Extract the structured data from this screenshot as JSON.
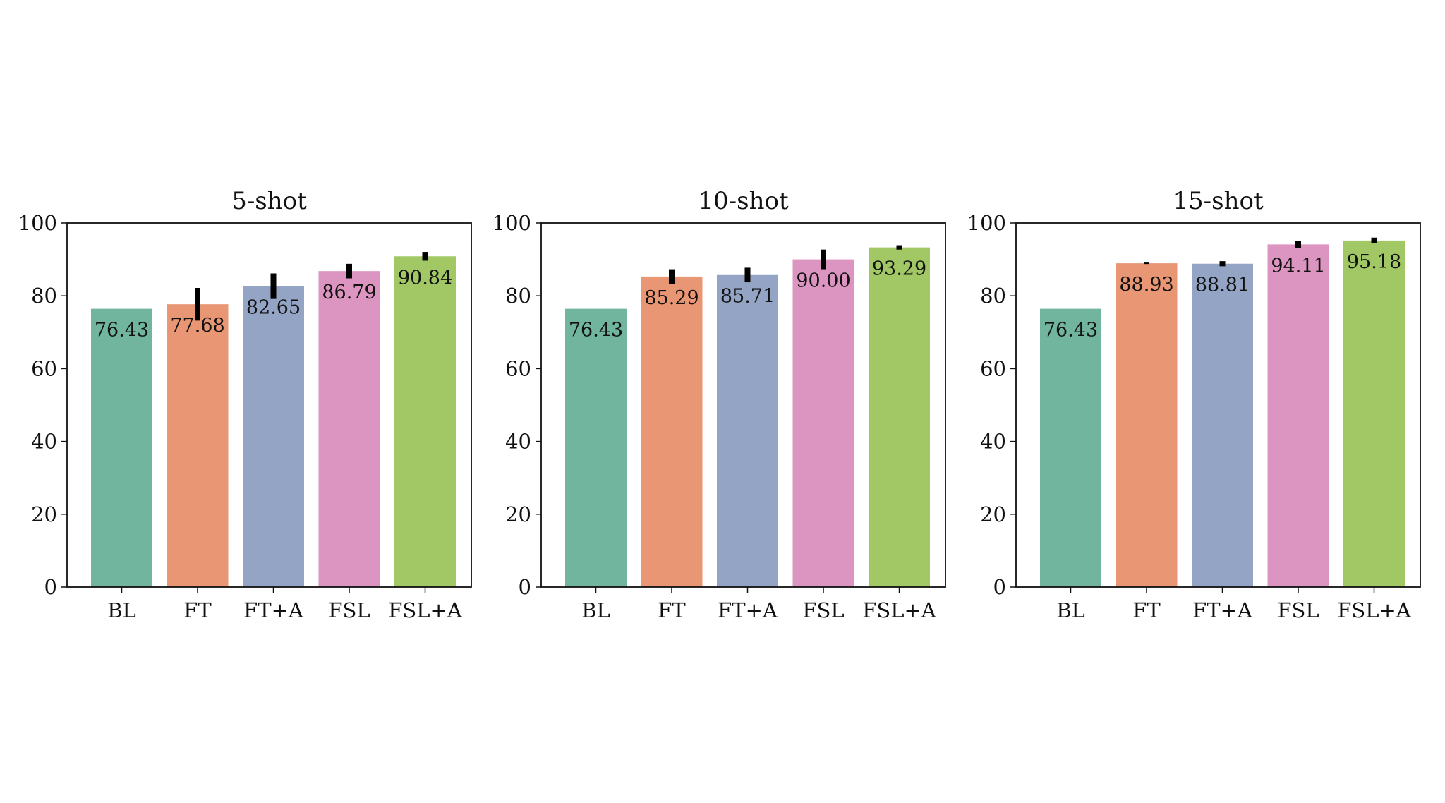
{
  "chart_data": [
    {
      "type": "bar",
      "title": "5-shot",
      "categories": [
        "BL",
        "FT",
        "FT+A",
        "FSL",
        "FSL+A"
      ],
      "values": [
        76.43,
        77.68,
        82.65,
        86.79,
        90.84
      ],
      "value_labels": [
        "76.43",
        "77.68",
        "82.65",
        "86.79",
        "90.84"
      ],
      "error": [
        0.0,
        4.5,
        3.5,
        2.0,
        1.2
      ],
      "ylim": [
        0,
        100
      ],
      "yticks": [
        0,
        20,
        40,
        60,
        80,
        100
      ],
      "ytick_labels": [
        "0",
        "20",
        "40",
        "60",
        "80",
        "100"
      ],
      "xlabel": "",
      "ylabel": ""
    },
    {
      "type": "bar",
      "title": "10-shot",
      "categories": [
        "BL",
        "FT",
        "FT+A",
        "FSL",
        "FSL+A"
      ],
      "values": [
        76.43,
        85.29,
        85.71,
        90.0,
        93.29
      ],
      "value_labels": [
        "76.43",
        "85.29",
        "85.71",
        "90.00",
        "93.29"
      ],
      "error": [
        0.0,
        2.0,
        2.0,
        2.7,
        0.6
      ],
      "ylim": [
        0,
        100
      ],
      "yticks": [
        0,
        20,
        40,
        60,
        80,
        100
      ],
      "ytick_labels": [
        "0",
        "20",
        "40",
        "60",
        "80",
        "100"
      ],
      "xlabel": "",
      "ylabel": ""
    },
    {
      "type": "bar",
      "title": "15-shot",
      "categories": [
        "BL",
        "FT",
        "FT+A",
        "FSL",
        "FSL+A"
      ],
      "values": [
        76.43,
        88.93,
        88.81,
        94.11,
        95.18
      ],
      "value_labels": [
        "76.43",
        "88.93",
        "88.81",
        "94.11",
        "95.18"
      ],
      "error": [
        0.0,
        0.2,
        0.7,
        0.9,
        0.8
      ],
      "ylim": [
        0,
        100
      ],
      "yticks": [
        0,
        20,
        40,
        60,
        80,
        100
      ],
      "ytick_labels": [
        "0",
        "20",
        "40",
        "60",
        "80",
        "100"
      ],
      "xlabel": "",
      "ylabel": ""
    }
  ],
  "colors": {
    "BL": "#72b59f",
    "FT": "#e89673",
    "FT+A": "#93a4c4",
    "FSL": "#dc95c0",
    "FSL+A": "#a2c866",
    "error_bar": "#000000",
    "axis": "#111111"
  },
  "grid": false,
  "legend": "none"
}
